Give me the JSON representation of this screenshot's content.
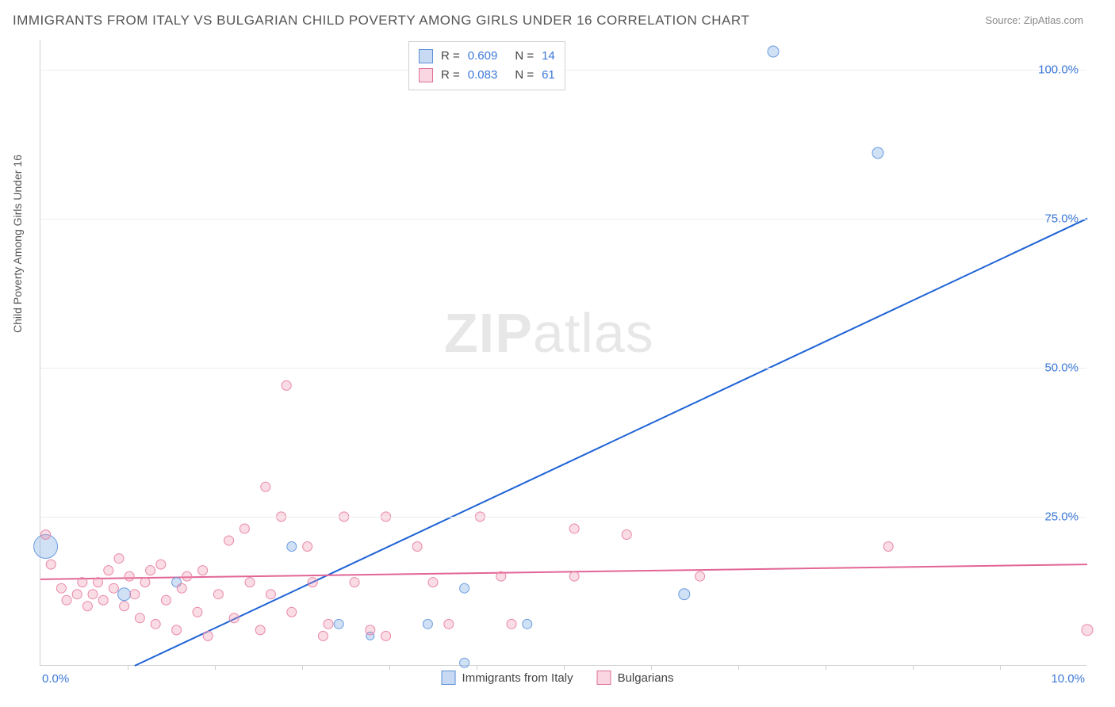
{
  "title": "IMMIGRANTS FROM ITALY VS BULGARIAN CHILD POVERTY AMONG GIRLS UNDER 16 CORRELATION CHART",
  "source": "Source: ZipAtlas.com",
  "ylabel": "Child Poverty Among Girls Under 16",
  "watermark_bold": "ZIP",
  "watermark_rest": "atlas",
  "chart": {
    "type": "scatter-with-regression",
    "background_color": "#ffffff",
    "grid_color": "#eeeeee",
    "axis_color": "#d0d0d0",
    "xlim": [
      0,
      10
    ],
    "ylim": [
      0,
      105
    ],
    "yticks": [
      {
        "v": 25,
        "label": "25.0%"
      },
      {
        "v": 50,
        "label": "50.0%"
      },
      {
        "v": 75,
        "label": "75.0%"
      },
      {
        "v": 100,
        "label": "100.0%"
      }
    ],
    "xticks_minor": [
      0.83,
      1.67,
      2.5,
      3.33,
      4.17,
      5.0,
      5.83,
      6.67,
      7.5,
      8.33,
      9.17
    ],
    "xtick_labels": {
      "left": "0.0%",
      "right": "10.0%"
    },
    "legend_corr": [
      {
        "swatch": "blue",
        "r_label": "R =",
        "r_val": "0.609",
        "n_label": "N =",
        "n_val": "14"
      },
      {
        "swatch": "pink",
        "r_label": "R =",
        "r_val": "0.083",
        "n_label": "N =",
        "n_val": "61"
      }
    ],
    "legend_bottom": [
      {
        "swatch": "blue",
        "label": "Immigrants from Italy"
      },
      {
        "swatch": "pink",
        "label": "Bulgarians"
      }
    ],
    "series": [
      {
        "name": "italy",
        "color_fill": "rgba(120,165,225,0.35)",
        "color_stroke": "#6a9de0",
        "line_color": "#1f63d6",
        "line_width": 2,
        "regression": {
          "x1": 0.9,
          "y1": 0,
          "x2": 10,
          "y2": 75
        },
        "points": [
          {
            "x": 0.05,
            "y": 20,
            "r": 15
          },
          {
            "x": 0.8,
            "y": 12,
            "r": 8
          },
          {
            "x": 1.3,
            "y": 14,
            "r": 6
          },
          {
            "x": 2.4,
            "y": 20,
            "r": 6
          },
          {
            "x": 2.85,
            "y": 7,
            "r": 6
          },
          {
            "x": 3.15,
            "y": 5,
            "r": 5
          },
          {
            "x": 3.7,
            "y": 7,
            "r": 6
          },
          {
            "x": 4.05,
            "y": 13,
            "r": 6
          },
          {
            "x": 4.05,
            "y": 0.5,
            "r": 6
          },
          {
            "x": 4.65,
            "y": 7,
            "r": 6
          },
          {
            "x": 6.15,
            "y": 12,
            "r": 7
          },
          {
            "x": 7.0,
            "y": 103,
            "r": 7
          },
          {
            "x": 8.0,
            "y": 86,
            "r": 7
          }
        ]
      },
      {
        "name": "bulgarians",
        "color_fill": "rgba(240,140,170,0.30)",
        "color_stroke": "#e887a8",
        "line_color": "#e26596",
        "line_width": 2,
        "regression": {
          "x1": 0,
          "y1": 14.5,
          "x2": 10,
          "y2": 17
        },
        "points": [
          {
            "x": 0.05,
            "y": 22,
            "r": 6
          },
          {
            "x": 0.1,
            "y": 17,
            "r": 6
          },
          {
            "x": 0.2,
            "y": 13,
            "r": 6
          },
          {
            "x": 0.25,
            "y": 11,
            "r": 6
          },
          {
            "x": 0.35,
            "y": 12,
            "r": 6
          },
          {
            "x": 0.4,
            "y": 14,
            "r": 6
          },
          {
            "x": 0.45,
            "y": 10,
            "r": 6
          },
          {
            "x": 0.5,
            "y": 12,
            "r": 6
          },
          {
            "x": 0.55,
            "y": 14,
            "r": 6
          },
          {
            "x": 0.6,
            "y": 11,
            "r": 6
          },
          {
            "x": 0.65,
            "y": 16,
            "r": 6
          },
          {
            "x": 0.7,
            "y": 13,
            "r": 6
          },
          {
            "x": 0.75,
            "y": 18,
            "r": 6
          },
          {
            "x": 0.8,
            "y": 10,
            "r": 6
          },
          {
            "x": 0.85,
            "y": 15,
            "r": 6
          },
          {
            "x": 0.9,
            "y": 12,
            "r": 6
          },
          {
            "x": 0.95,
            "y": 8,
            "r": 6
          },
          {
            "x": 1.0,
            "y": 14,
            "r": 6
          },
          {
            "x": 1.05,
            "y": 16,
            "r": 6
          },
          {
            "x": 1.1,
            "y": 7,
            "r": 6
          },
          {
            "x": 1.15,
            "y": 17,
            "r": 6
          },
          {
            "x": 1.2,
            "y": 11,
            "r": 6
          },
          {
            "x": 1.3,
            "y": 6,
            "r": 6
          },
          {
            "x": 1.35,
            "y": 13,
            "r": 6
          },
          {
            "x": 1.4,
            "y": 15,
            "r": 6
          },
          {
            "x": 1.5,
            "y": 9,
            "r": 6
          },
          {
            "x": 1.55,
            "y": 16,
            "r": 6
          },
          {
            "x": 1.6,
            "y": 5,
            "r": 6
          },
          {
            "x": 1.7,
            "y": 12,
            "r": 6
          },
          {
            "x": 1.8,
            "y": 21,
            "r": 6
          },
          {
            "x": 1.85,
            "y": 8,
            "r": 6
          },
          {
            "x": 1.95,
            "y": 23,
            "r": 6
          },
          {
            "x": 2.0,
            "y": 14,
            "r": 6
          },
          {
            "x": 2.1,
            "y": 6,
            "r": 6
          },
          {
            "x": 2.15,
            "y": 30,
            "r": 6
          },
          {
            "x": 2.2,
            "y": 12,
            "r": 6
          },
          {
            "x": 2.3,
            "y": 25,
            "r": 6
          },
          {
            "x": 2.35,
            "y": 47,
            "r": 6
          },
          {
            "x": 2.4,
            "y": 9,
            "r": 6
          },
          {
            "x": 2.55,
            "y": 20,
            "r": 6
          },
          {
            "x": 2.6,
            "y": 14,
            "r": 6
          },
          {
            "x": 2.7,
            "y": 5,
            "r": 6
          },
          {
            "x": 2.75,
            "y": 7,
            "r": 6
          },
          {
            "x": 2.9,
            "y": 25,
            "r": 6
          },
          {
            "x": 3.0,
            "y": 14,
            "r": 6
          },
          {
            "x": 3.15,
            "y": 6,
            "r": 6
          },
          {
            "x": 3.3,
            "y": 25,
            "r": 6
          },
          {
            "x": 3.3,
            "y": 5,
            "r": 6
          },
          {
            "x": 3.6,
            "y": 20,
            "r": 6
          },
          {
            "x": 3.75,
            "y": 14,
            "r": 6
          },
          {
            "x": 3.9,
            "y": 7,
            "r": 6
          },
          {
            "x": 4.2,
            "y": 25,
            "r": 6
          },
          {
            "x": 4.4,
            "y": 15,
            "r": 6
          },
          {
            "x": 4.5,
            "y": 7,
            "r": 6
          },
          {
            "x": 5.1,
            "y": 23,
            "r": 6
          },
          {
            "x": 5.1,
            "y": 15,
            "r": 6
          },
          {
            "x": 5.6,
            "y": 22,
            "r": 6
          },
          {
            "x": 6.3,
            "y": 15,
            "r": 6
          },
          {
            "x": 8.1,
            "y": 20,
            "r": 6
          },
          {
            "x": 10.0,
            "y": 6,
            "r": 7
          }
        ]
      }
    ]
  }
}
